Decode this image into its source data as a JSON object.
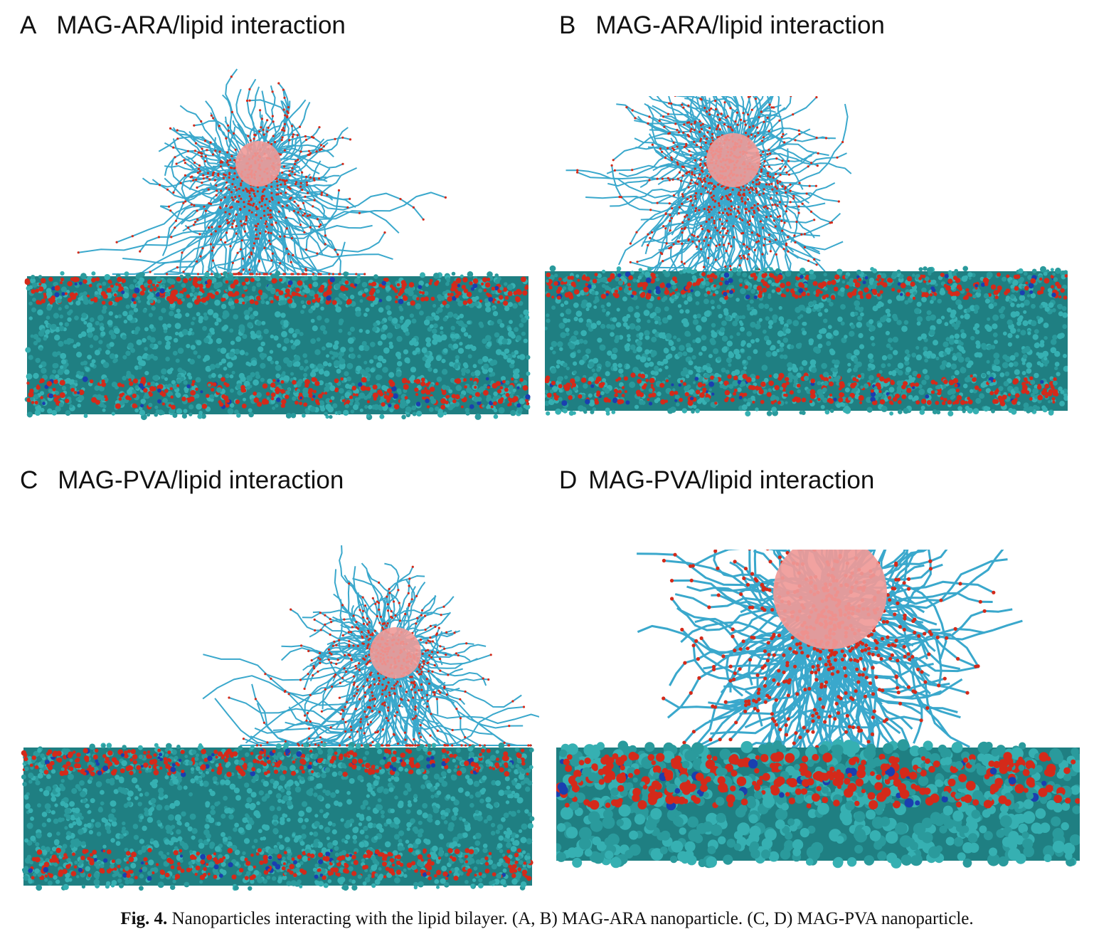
{
  "panels": [
    {
      "letter": "A",
      "title": "MAG-ARA/lipid interaction"
    },
    {
      "letter": "B",
      "title": "MAG-ARA/lipid interaction"
    },
    {
      "letter": "C",
      "title": "MAG-PVA/lipid interaction"
    },
    {
      "letter": "D",
      "title": "MAG-PVA/lipid interaction"
    }
  ],
  "caption": {
    "label": "Fig. 4.",
    "text": "Nanoparticles interacting with the lipid bilayer. (A, B) MAG-ARA nanoparticle. (C, D) MAG-PVA nanoparticle."
  },
  "colors": {
    "lipid_tails": "#2a9a9c",
    "head_groups": "#d42a1a",
    "nitrogen": "#1a3fb0",
    "polymer_chains": "#3aa8cc",
    "core": "#f09a98"
  }
}
